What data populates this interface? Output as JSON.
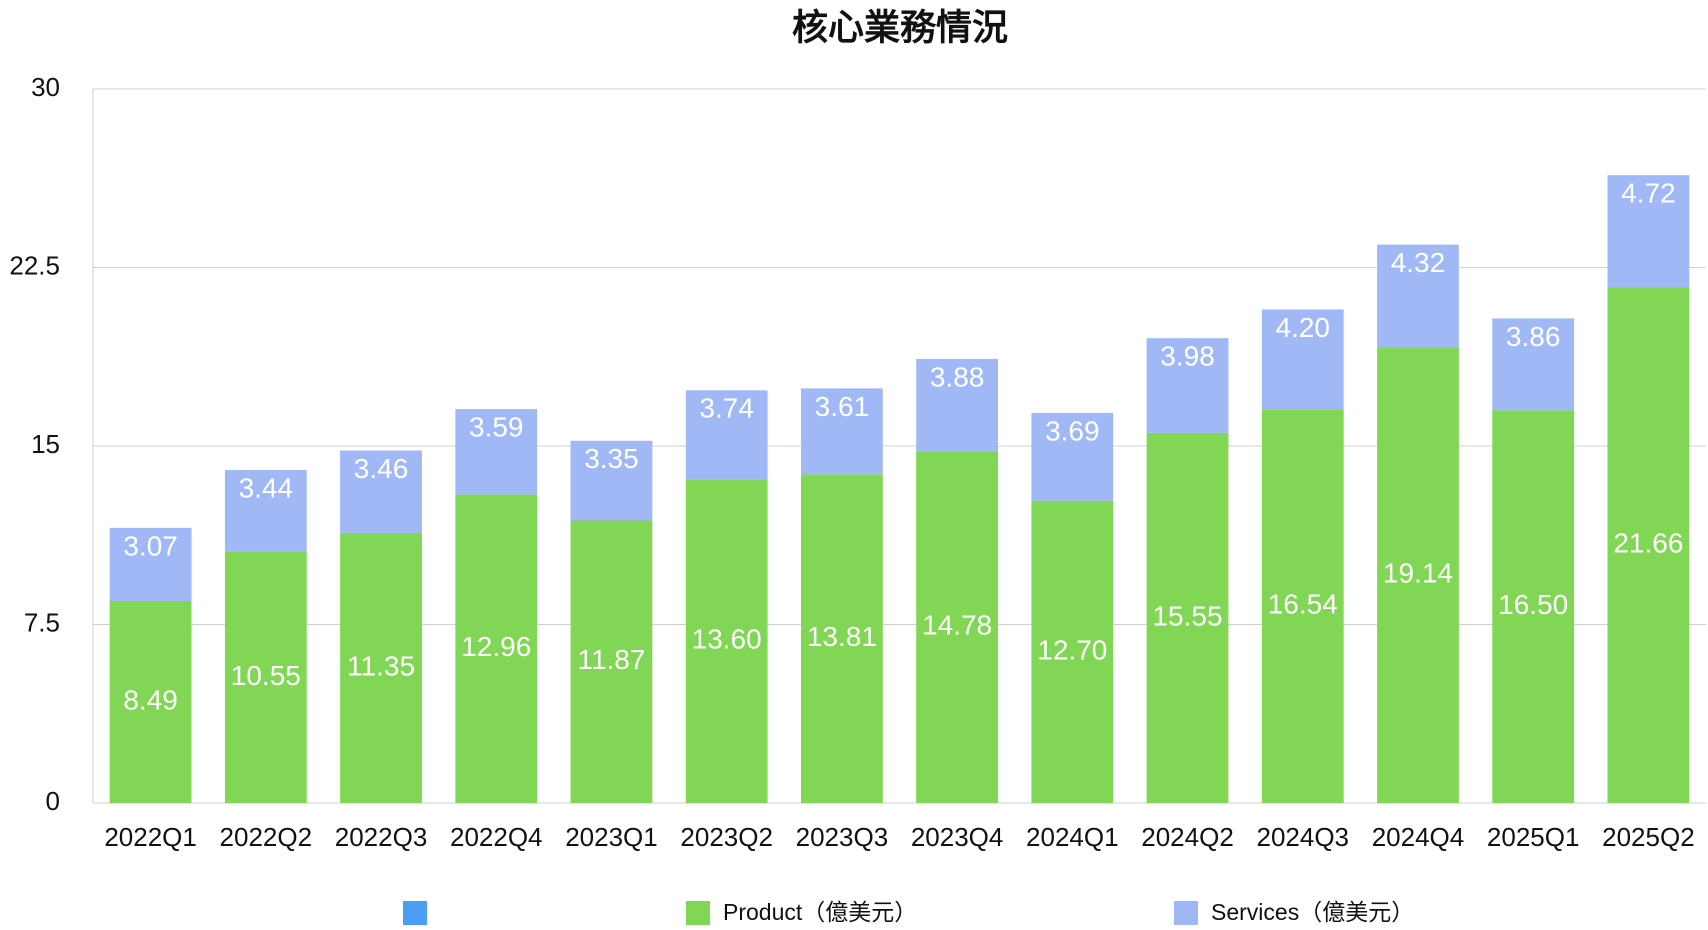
{
  "chart_data": {
    "type": "bar",
    "stacked": true,
    "title": "核心業務情況",
    "categories": [
      "2022Q1",
      "2022Q2",
      "2022Q3",
      "2022Q4",
      "2023Q1",
      "2023Q2",
      "2023Q3",
      "2023Q4",
      "2024Q1",
      "2024Q2",
      "2024Q3",
      "2024Q4",
      "2025Q1",
      "2025Q2"
    ],
    "series": [
      {
        "name": null,
        "color": "#4a9ff5",
        "values": [
          null,
          null,
          null,
          null,
          null,
          null,
          null,
          null,
          null,
          null,
          null,
          null,
          null,
          null
        ]
      },
      {
        "name": "Product（億美元）",
        "color": "#82d656",
        "values": [
          8.49,
          10.55,
          11.35,
          12.96,
          11.87,
          13.6,
          13.81,
          14.78,
          12.7,
          15.55,
          16.54,
          19.14,
          16.5,
          21.66
        ],
        "value_labels": [
          "8.49",
          "10.55",
          "11.35",
          "12.96",
          "11.87",
          "13.60",
          "13.81",
          "14.78",
          "12.70",
          "15.55",
          "16.54",
          "19.14",
          "16.50",
          "21.66"
        ]
      },
      {
        "name": "Services（億美元）",
        "color": "#a0b8f5",
        "values": [
          3.07,
          3.44,
          3.46,
          3.59,
          3.35,
          3.74,
          3.61,
          3.88,
          3.69,
          3.98,
          4.2,
          4.32,
          3.86,
          4.72
        ],
        "value_labels": [
          "3.07",
          "3.44",
          "3.46",
          "3.59",
          "3.35",
          "3.74",
          "3.61",
          "3.88",
          "3.69",
          "3.98",
          "4.20",
          "4.32",
          "3.86",
          "4.72"
        ]
      }
    ],
    "ylim": [
      0,
      30
    ],
    "yticks": [
      0,
      7.5,
      15,
      22.5,
      30
    ],
    "grid": true
  }
}
